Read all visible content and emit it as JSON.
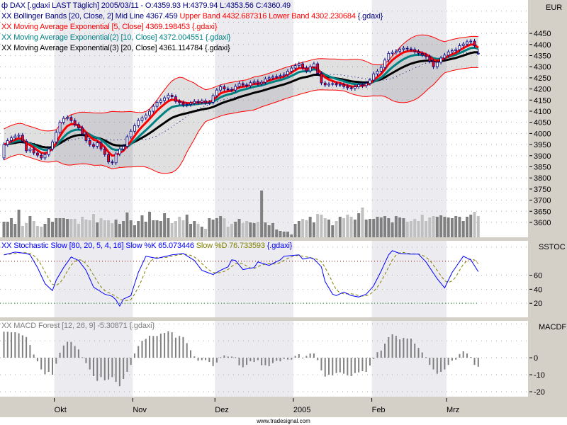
{
  "legend": {
    "dax": {
      "icon": "candlestick-icon",
      "text": "DAX [.gdaxi LAST Täglich] 2005/03/11 - O:4359.93 H:4379.94 L:4353.56 C:4360.49"
    },
    "bollinger": {
      "prefix": "XX",
      "name": "Bollinger Bands [20, Close, 2] Mid Line 4367.459",
      "upper": "Upper Band 4432.687316",
      "lower": "Lower Band 4302.230684",
      "suffix": "{.gdaxi}"
    },
    "ema5": {
      "prefix": "XX",
      "text": "Moving Average Exponential [5, Close] 4369.198453 {.gdaxi}"
    },
    "ema10": {
      "prefix": "XX",
      "text": "Moving Average Exponential(2) [10, Close] 4372.004551 {.gdaxi}"
    },
    "ema20": {
      "prefix": "XX",
      "text": "Moving Average Exponential(3) [20, Close] 4361.114784 {.gdaxi}"
    },
    "stoch": {
      "prefix": "XX",
      "name": "Stochastic Slow [80, 20, 5, 4, 16] Slow %K 65.073446",
      "d": "Slow %D 76.733593",
      "suffix": "{.gdaxi}"
    },
    "macd": {
      "prefix": "XX",
      "text": "MACD Forest [12, 26, 9] -5.30871 {.gdaxi}"
    }
  },
  "axis": {
    "currency": "EUR",
    "price_ticks": [
      "4450",
      "4400",
      "4350",
      "4300",
      "4250",
      "4200",
      "4150",
      "4100",
      "4050",
      "4000",
      "3950",
      "3900",
      "3850",
      "3800",
      "3750",
      "3700",
      "3650",
      "3600"
    ],
    "stoch_label": "SSTOC",
    "stoch_ticks": [
      "60",
      "40",
      "20"
    ],
    "macd_label": "MACDF",
    "macd_ticks": [
      "0",
      "-10",
      "-20"
    ],
    "months": [
      {
        "label": "Okt",
        "start_bar": 14,
        "shaded": true
      },
      {
        "label": "Nov",
        "start_bar": 35,
        "shaded": false
      },
      {
        "label": "Dez",
        "start_bar": 57,
        "shaded": true
      },
      {
        "label": "2005",
        "start_bar": 78,
        "shaded": false
      },
      {
        "label": "Feb",
        "start_bar": 99,
        "shaded": true
      },
      {
        "label": "Mrz",
        "start_bar": 119,
        "shaded": false
      }
    ]
  },
  "footer": "www.tradesignal.com",
  "colors": {
    "dax_text": "#000080",
    "band": "#ff0000",
    "ema5": "#ff0000",
    "ema10": "#008080",
    "ema20": "#000000",
    "mid_line": "#000080",
    "candle_outline": "#000080",
    "candle_down": "#ff0000",
    "candle_up": "#ffffff",
    "stoch_k": "#0000ff",
    "stoch_d": "#808000",
    "stoch_upper": "#800000",
    "stoch_lower": "#008000",
    "macd": "#808080",
    "month_shade": "#ebebf0",
    "volume_up": "#808080",
    "volume_down": "#c0c0c0"
  },
  "chart_data": [
    {
      "type": "candlestick",
      "title": "DAX [.gdaxi LAST Täglich]",
      "ylim": [
        3533,
        4600
      ],
      "yticks": [
        3600,
        4450,
        50
      ],
      "grid": true,
      "first_open": 3890,
      "last_ohlc": {
        "open": 4359.93,
        "high": 4379.94,
        "low": 4353.56,
        "close": 4360.49
      },
      "closes": [
        3950,
        3968,
        3980,
        3988,
        3992,
        3965,
        3922,
        3930,
        3912,
        3902,
        3890,
        3905,
        3930,
        3962,
        4005,
        4050,
        4068,
        4072,
        4058,
        4040,
        4025,
        3998,
        3968,
        3950,
        3942,
        3958,
        3930,
        3905,
        3872,
        3868,
        3908,
        3930,
        3942,
        3985,
        4010,
        4035,
        4058,
        4070,
        4082,
        4100,
        4122,
        4140,
        4148,
        4160,
        4172,
        4165,
        4144,
        4138,
        4128,
        4130,
        4136,
        4144,
        4140,
        4146,
        4138,
        4140,
        4170,
        4195,
        4210,
        4200,
        4198,
        4195,
        4212,
        4224,
        4218,
        4215,
        4228,
        4233,
        4224,
        4230,
        4245,
        4250,
        4254,
        4256,
        4260,
        4265,
        4280,
        4294,
        4305,
        4313,
        4295,
        4281,
        4300,
        4313,
        4270,
        4227,
        4218,
        4222,
        4224,
        4218,
        4220,
        4211,
        4205,
        4202,
        4210,
        4220,
        4215,
        4225,
        4240,
        4268,
        4280,
        4297,
        4330,
        4360,
        4365,
        4370,
        4378,
        4383,
        4380,
        4377,
        4368,
        4360,
        4352,
        4345,
        4325,
        4300,
        4320,
        4339,
        4352,
        4367,
        4372,
        4377,
        4395,
        4402,
        4412,
        4415,
        4395,
        4360.49
      ],
      "volume_relative": [
        66,
        66,
        81,
        57,
        117,
        48,
        60,
        90,
        69,
        48,
        45,
        57,
        81,
        66,
        81,
        81,
        81,
        78,
        78,
        78,
        57,
        87,
        75,
        72,
        99,
        63,
        81,
        72,
        72,
        60,
        75,
        57,
        69,
        105,
        72,
        51,
        69,
        93,
        66,
        108,
        72,
        72,
        69,
        102,
        81,
        60,
        69,
        87,
        72,
        96,
        57,
        69,
        57,
        45,
        36,
        81,
        75,
        81,
        90,
        81,
        45,
        57,
        66,
        78,
        60,
        69,
        63,
        60,
        66,
        198,
        63,
        51,
        60,
        33,
        27,
        24,
        24,
        12,
        57,
        69,
        78,
        72,
        87,
        63,
        99,
        96,
        81,
        75,
        51,
        69,
        87,
        81,
        96,
        87,
        75,
        102,
        126,
        75,
        78,
        78,
        87,
        84,
        90,
        81,
        63,
        90,
        84,
        81,
        66,
        69,
        78,
        69,
        96,
        69,
        84,
        90,
        87,
        93,
        87,
        84,
        81,
        90,
        87,
        69,
        87,
        96,
        108,
        90
      ],
      "overlays": {
        "bollinger": {
          "period": 20,
          "deviations": 2
        },
        "ema": [
          5,
          10,
          20
        ]
      }
    },
    {
      "type": "line",
      "title": "Stochastic Slow [80, 20, 5, 4, 16]",
      "ylim": [
        0,
        109
      ],
      "levels": {
        "upper": 80,
        "lower": 20
      },
      "grid_values": [
        100,
        60,
        40,
        20
      ],
      "k_points": [
        [
          0,
          89
        ],
        [
          3,
          93
        ],
        [
          6,
          91
        ],
        [
          7,
          89
        ],
        [
          9,
          71
        ],
        [
          11,
          48
        ],
        [
          13,
          38
        ],
        [
          14,
          53
        ],
        [
          16,
          71
        ],
        [
          18,
          86
        ],
        [
          20,
          81
        ],
        [
          22,
          67
        ],
        [
          24,
          43
        ],
        [
          27,
          33
        ],
        [
          29,
          30
        ],
        [
          30,
          25
        ],
        [
          31,
          16
        ],
        [
          32,
          26
        ],
        [
          34,
          31
        ],
        [
          36,
          64
        ],
        [
          38,
          87
        ],
        [
          41,
          84
        ],
        [
          45,
          89
        ],
        [
          48,
          91
        ],
        [
          51,
          81
        ],
        [
          53,
          67
        ],
        [
          56,
          61
        ],
        [
          58,
          67
        ],
        [
          60,
          72
        ],
        [
          61,
          82
        ],
        [
          62,
          81
        ],
        [
          64,
          68
        ],
        [
          67,
          71
        ],
        [
          68,
          79
        ],
        [
          71,
          74
        ],
        [
          74,
          82
        ],
        [
          75,
          87
        ],
        [
          77,
          88
        ],
        [
          79,
          89
        ],
        [
          80,
          83
        ],
        [
          82,
          85
        ],
        [
          83,
          83
        ],
        [
          85,
          72
        ],
        [
          86,
          51
        ],
        [
          88,
          33
        ],
        [
          89,
          31
        ],
        [
          91,
          36
        ],
        [
          93,
          31
        ],
        [
          95,
          29
        ],
        [
          97,
          33
        ],
        [
          99,
          45
        ],
        [
          101,
          66
        ],
        [
          103,
          89
        ],
        [
          104,
          95
        ],
        [
          106,
          91
        ],
        [
          109,
          90
        ],
        [
          111,
          90
        ],
        [
          113,
          79
        ],
        [
          116,
          55
        ],
        [
          118,
          42
        ],
        [
          120,
          64
        ],
        [
          123,
          87
        ],
        [
          125,
          82
        ],
        [
          127,
          65.07
        ]
      ],
      "d_smoothing": 4
    },
    {
      "type": "bar",
      "title": "MACD Forest [12, 26, 9]",
      "ylim": [
        -22.9,
        21.7
      ],
      "grid_values": [
        20,
        10,
        0,
        -10,
        -20
      ],
      "values": [
        15.3,
        15.3,
        15,
        15,
        14.4,
        13.2,
        12.2,
        7.5,
        1.9,
        -2.1,
        -6.9,
        -9.7,
        -8.3,
        -10,
        -3.5,
        3,
        7.2,
        9.4,
        9.3,
        6.9,
        4.9,
        0.3,
        -3.1,
        -6.9,
        -10.8,
        -13.6,
        -11.4,
        -13.3,
        -12.8,
        -11.4,
        -14.2,
        -16.7,
        -12.5,
        -8.3,
        -4.2,
        2.5,
        6.9,
        10,
        11.1,
        12.9,
        12.8,
        12.8,
        14.2,
        14.6,
        15.6,
        15,
        11.8,
        12.8,
        12.2,
        8.6,
        4.4,
        0.8,
        -1.7,
        -1.4,
        -1.4,
        -2.5,
        -4.9,
        -2.8,
        0.3,
        1.4,
        0.7,
        0.7,
        0.3,
        -4.4,
        -5.6,
        -4.2,
        -2.1,
        -2.5,
        -1.4,
        -4.4,
        -4.4,
        -4.9,
        -3.1,
        -1.8,
        -2.1,
        -0.7,
        -1.1,
        -1.1,
        1.1,
        2.1,
        0,
        1.1,
        2.5,
        2.5,
        -1.4,
        -7.4,
        -11.1,
        -10,
        -10.4,
        -9,
        -8.6,
        -9.4,
        -10.4,
        -10.8,
        -9,
        -8.6,
        -7.9,
        -8.3,
        -4.6,
        -0.7,
        3.3,
        4.2,
        8.3,
        12.1,
        13.8,
        12.9,
        10.8,
        11.7,
        11.3,
        11.3,
        8.3,
        5.8,
        3.1,
        0.3,
        -4.2,
        -6.9,
        -9.4,
        -8.3,
        -6.9,
        -4.2,
        -1.7,
        -1.1,
        2.2,
        3.8,
        2.5,
        0.4,
        -4.2,
        -5.30871
      ]
    }
  ]
}
